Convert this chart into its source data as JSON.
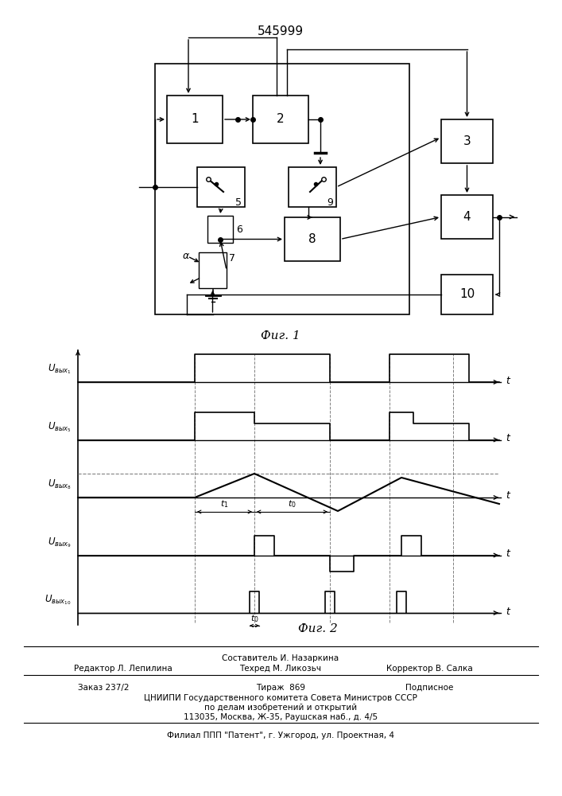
{
  "title": "545999",
  "fig1_label": "Фиг. 1",
  "fig2_label": "Фиг. 2",
  "background": "#ffffff",
  "footer_lines": [
    "Составитель И. Назаркина",
    "Редактор Л. Лепилина",
    "Техред М. Ликозьч",
    "Корректор В. Салка",
    "Заказ 237/2",
    "Тираж  869",
    "Подписное",
    "ЦНИИПИ Государственного комитета Совета Министров СССР",
    "по делам изобретений и открытий",
    "113035, Москва, Ж-35, Раушская наб., д. 4/5",
    "Филиал ППП \"Патент\", г. Ужгород, ул. Проектная, 4"
  ]
}
